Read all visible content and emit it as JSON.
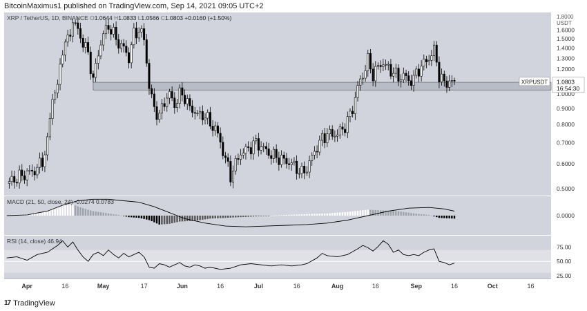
{
  "header": {
    "publisher_line": "BitcoinMaximus1 published on TradingView.com, Sep 14, 2021 09:05 UTC+2"
  },
  "footer": {
    "brand": "TradingView"
  },
  "colors": {
    "panel_bg": "#d1d4dc",
    "rsi_band": "#dfe1e6",
    "candle_up": "#ffffff",
    "candle_down": "#000000",
    "line": "#000000",
    "support_zone": "#9aa0aa"
  },
  "chart_data": [
    {
      "type": "candlestick",
      "symbol_line": {
        "symbol": "XRP / TetherUS, 1D, BINANCE",
        "o_label": "O",
        "o_value": "1.0644",
        "h_label": "H",
        "h_value": "1.0833",
        "l_label": "L",
        "l_value": "1.0566",
        "c_label": "C",
        "c_value": "1.0803",
        "change": "+0.0160 (+1.50%)"
      },
      "price_scale": "log",
      "y_ticks": [
        "1.6000",
        "1.5000",
        "1.4000",
        "1.3000",
        "1.2000",
        "1.1000",
        "1.0000",
        "0.9000",
        "0.8000",
        "0.7000",
        "0.6000",
        "0.5000"
      ],
      "y_tick_values": [
        1.6,
        1.5,
        1.4,
        1.3,
        1.2,
        1.1,
        1.0,
        0.9,
        0.8,
        0.7,
        0.6,
        0.5
      ],
      "y_top_label": "1.8000",
      "y_unit": "USDT",
      "ylim": [
        0.48,
        1.8
      ],
      "price_badge": {
        "symbol": "XRPUSDT",
        "price": "1.0803",
        "countdown": "16:54:30",
        "value": 1.0803
      },
      "support_zone": [
        1.03,
        1.09
      ],
      "x_ticks": [
        "Apr",
        "16",
        "May",
        "17",
        "Jun",
        "16",
        "Jul",
        "16",
        "Aug",
        "16",
        "Sep",
        "16",
        "Oct",
        "16"
      ],
      "x_tick_days": [
        0,
        15,
        30,
        46,
        61,
        76,
        91,
        106,
        122,
        137,
        153,
        168,
        183,
        198
      ],
      "x_range_days": [
        -9,
        206
      ],
      "close_anchors": [
        [
          -8,
          0.52
        ],
        [
          0,
          0.56
        ],
        [
          3,
          0.57
        ],
        [
          6,
          0.61
        ],
        [
          8,
          0.7
        ],
        [
          10,
          0.98
        ],
        [
          12,
          1.05
        ],
        [
          14,
          1.4
        ],
        [
          16,
          1.48
        ],
        [
          18,
          1.7
        ],
        [
          20,
          1.6
        ],
        [
          22,
          1.45
        ],
        [
          24,
          1.35
        ],
        [
          26,
          1.1
        ],
        [
          28,
          1.35
        ],
        [
          30,
          1.55
        ],
        [
          32,
          1.65
        ],
        [
          34,
          1.55
        ],
        [
          36,
          1.45
        ],
        [
          38,
          1.4
        ],
        [
          40,
          1.3
        ],
        [
          42,
          1.55
        ],
        [
          44,
          1.6
        ],
        [
          46,
          1.5
        ],
        [
          48,
          1.05
        ],
        [
          50,
          0.9
        ],
        [
          52,
          0.85
        ],
        [
          54,
          0.95
        ],
        [
          56,
          1.0
        ],
        [
          58,
          0.92
        ],
        [
          60,
          1.0
        ],
        [
          62,
          0.98
        ],
        [
          64,
          0.9
        ],
        [
          66,
          0.88
        ],
        [
          68,
          0.85
        ],
        [
          70,
          0.86
        ],
        [
          72,
          0.8
        ],
        [
          74,
          0.78
        ],
        [
          76,
          0.7
        ],
        [
          78,
          0.62
        ],
        [
          80,
          0.55
        ],
        [
          82,
          0.6
        ],
        [
          84,
          0.65
        ],
        [
          86,
          0.66
        ],
        [
          88,
          0.68
        ],
        [
          90,
          0.7
        ],
        [
          92,
          0.68
        ],
        [
          94,
          0.66
        ],
        [
          96,
          0.64
        ],
        [
          98,
          0.63
        ],
        [
          100,
          0.62
        ],
        [
          102,
          0.61
        ],
        [
          104,
          0.6
        ],
        [
          106,
          0.58
        ],
        [
          108,
          0.56
        ],
        [
          110,
          0.58
        ],
        [
          112,
          0.63
        ],
        [
          114,
          0.68
        ],
        [
          116,
          0.72
        ],
        [
          118,
          0.75
        ],
        [
          120,
          0.74
        ],
        [
          122,
          0.75
        ],
        [
          124,
          0.77
        ],
        [
          126,
          0.82
        ],
        [
          128,
          0.9
        ],
        [
          130,
          1.05
        ],
        [
          132,
          1.15
        ],
        [
          134,
          1.28
        ],
        [
          136,
          1.15
        ],
        [
          138,
          1.22
        ],
        [
          140,
          1.26
        ],
        [
          142,
          1.2
        ],
        [
          144,
          1.18
        ],
        [
          146,
          1.12
        ],
        [
          148,
          1.15
        ],
        [
          150,
          1.1
        ],
        [
          152,
          1.12
        ],
        [
          154,
          1.2
        ],
        [
          156,
          1.25
        ],
        [
          158,
          1.3
        ],
        [
          160,
          1.38
        ],
        [
          162,
          1.15
        ],
        [
          164,
          1.08
        ],
        [
          166,
          1.1
        ],
        [
          168,
          1.0803
        ]
      ]
    },
    {
      "type": "line",
      "name": "MACD",
      "title_line": {
        "name": "MACD",
        "params": "(21, 50, close, 24)",
        "value1": "-0.0274",
        "value2": "0.0783"
      },
      "y_ticks": [
        "0.0000"
      ],
      "ylim": [
        -0.13,
        0.13
      ],
      "series": [
        {
          "role": "signal",
          "points": [
            [
              -8,
              0.0
            ],
            [
              0,
              0.005
            ],
            [
              8,
              0.03
            ],
            [
              14,
              0.07
            ],
            [
              20,
              0.1
            ],
            [
              26,
              0.11
            ],
            [
              32,
              0.11
            ],
            [
              38,
              0.1
            ],
            [
              44,
              0.09
            ],
            [
              50,
              0.06
            ],
            [
              56,
              0.02
            ],
            [
              62,
              -0.02
            ],
            [
              70,
              -0.05
            ],
            [
              78,
              -0.07
            ],
            [
              86,
              -0.075
            ],
            [
              94,
              -0.07
            ],
            [
              102,
              -0.065
            ],
            [
              110,
              -0.06
            ],
            [
              118,
              -0.05
            ],
            [
              126,
              -0.03
            ],
            [
              134,
              0.0
            ],
            [
              142,
              0.03
            ],
            [
              150,
              0.05
            ],
            [
              158,
              0.055
            ],
            [
              164,
              0.045
            ],
            [
              168,
              0.03
            ]
          ]
        }
      ],
      "histogram": [
        [
          -8,
          0.004
        ],
        [
          0,
          0.01
        ],
        [
          6,
          0.02
        ],
        [
          10,
          0.045
        ],
        [
          14,
          0.07
        ],
        [
          18,
          0.075
        ],
        [
          22,
          0.05
        ],
        [
          26,
          0.03
        ],
        [
          30,
          0.02
        ],
        [
          36,
          0.005
        ],
        [
          40,
          -0.01
        ],
        [
          44,
          -0.015
        ],
        [
          48,
          -0.03
        ],
        [
          52,
          -0.06
        ],
        [
          56,
          -0.055
        ],
        [
          60,
          -0.04
        ],
        [
          66,
          -0.035
        ],
        [
          72,
          -0.02
        ],
        [
          78,
          -0.015
        ],
        [
          84,
          -0.01
        ],
        [
          90,
          -0.005
        ],
        [
          96,
          0.0
        ],
        [
          102,
          0.005
        ],
        [
          110,
          0.01
        ],
        [
          118,
          0.015
        ],
        [
          126,
          0.025
        ],
        [
          134,
          0.04
        ],
        [
          140,
          0.035
        ],
        [
          146,
          0.03
        ],
        [
          152,
          0.015
        ],
        [
          158,
          0.005
        ],
        [
          162,
          -0.015
        ],
        [
          168,
          -0.02
        ]
      ]
    },
    {
      "type": "line",
      "name": "RSI",
      "title_line": {
        "name": "RSI",
        "params": "(14, close)",
        "value": "46.94"
      },
      "y_ticks": [
        "75.00",
        "50.00",
        "25.00"
      ],
      "y_tick_values": [
        75,
        50,
        25
      ],
      "band": [
        30,
        70
      ],
      "ylim": [
        20,
        95
      ],
      "series": [
        {
          "role": "rsi",
          "points": [
            [
              -8,
              56
            ],
            [
              -4,
              58
            ],
            [
              0,
              52
            ],
            [
              4,
              62
            ],
            [
              8,
              66
            ],
            [
              12,
              78
            ],
            [
              14,
              86
            ],
            [
              16,
              75
            ],
            [
              18,
              84
            ],
            [
              20,
              70
            ],
            [
              22,
              58
            ],
            [
              24,
              50
            ],
            [
              26,
              62
            ],
            [
              28,
              66
            ],
            [
              30,
              60
            ],
            [
              32,
              70
            ],
            [
              34,
              62
            ],
            [
              36,
              56
            ],
            [
              38,
              64
            ],
            [
              40,
              58
            ],
            [
              42,
              62
            ],
            [
              44,
              66
            ],
            [
              46,
              58
            ],
            [
              48,
              40
            ],
            [
              50,
              38
            ],
            [
              52,
              46
            ],
            [
              54,
              44
            ],
            [
              56,
              40
            ],
            [
              58,
              44
            ],
            [
              60,
              48
            ],
            [
              62,
              42
            ],
            [
              64,
              40
            ],
            [
              66,
              44
            ],
            [
              68,
              42
            ],
            [
              70,
              38
            ],
            [
              72,
              40
            ],
            [
              76,
              36
            ],
            [
              80,
              38
            ],
            [
              84,
              44
            ],
            [
              88,
              46
            ],
            [
              92,
              44
            ],
            [
              96,
              42
            ],
            [
              100,
              44
            ],
            [
              104,
              42
            ],
            [
              108,
              44
            ],
            [
              110,
              46
            ],
            [
              114,
              56
            ],
            [
              116,
              64
            ],
            [
              118,
              60
            ],
            [
              122,
              58
            ],
            [
              126,
              62
            ],
            [
              130,
              72
            ],
            [
              132,
              78
            ],
            [
              134,
              74
            ],
            [
              136,
              68
            ],
            [
              138,
              76
            ],
            [
              140,
              86
            ],
            [
              142,
              80
            ],
            [
              144,
              66
            ],
            [
              146,
              70
            ],
            [
              148,
              62
            ],
            [
              150,
              60
            ],
            [
              152,
              62
            ],
            [
              154,
              60
            ],
            [
              156,
              66
            ],
            [
              158,
              70
            ],
            [
              160,
              72
            ],
            [
              162,
              50
            ],
            [
              164,
              48
            ],
            [
              166,
              44
            ],
            [
              168,
              46.94
            ]
          ]
        }
      ]
    }
  ]
}
